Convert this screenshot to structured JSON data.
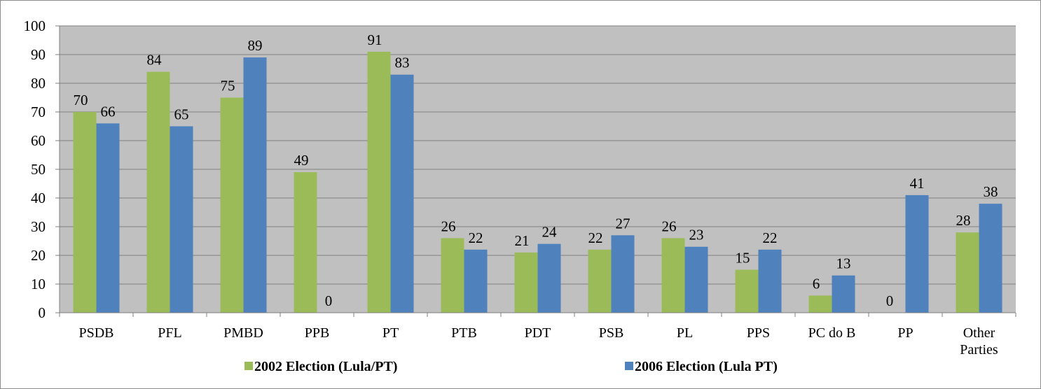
{
  "chart_data": {
    "type": "bar",
    "categories": [
      "PSDB",
      "PFL",
      "PMBD",
      "PPB",
      "PT",
      "PTB",
      "PDT",
      "PSB",
      "PL",
      "PPS",
      "PC do B",
      "PP",
      "Other Parties"
    ],
    "series": [
      {
        "name": "2002 Election (Lula/PT)",
        "color": "#9bbb59",
        "values": [
          70,
          84,
          75,
          49,
          91,
          26,
          21,
          22,
          26,
          15,
          6,
          0,
          28
        ]
      },
      {
        "name": "2006 Election (Lula PT)",
        "color": "#4f81bd",
        "values": [
          66,
          65,
          89,
          0,
          83,
          22,
          24,
          27,
          23,
          22,
          13,
          41,
          38
        ]
      }
    ],
    "ylim": [
      0,
      100
    ],
    "yticks": [
      0,
      10,
      20,
      30,
      40,
      50,
      60,
      70,
      80,
      90,
      100
    ],
    "grid": true,
    "legend": "bottom"
  }
}
